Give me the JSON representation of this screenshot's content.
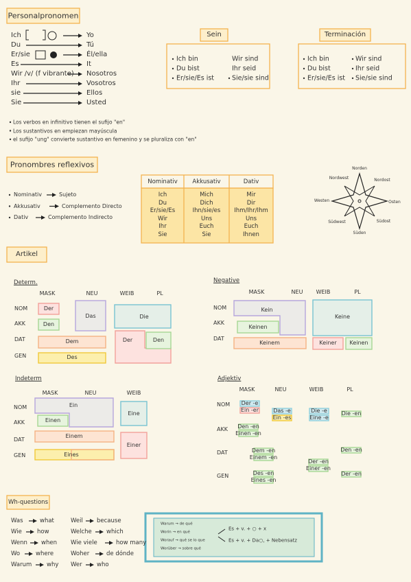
{
  "personal": {
    "title": "Personalpronomen",
    "rows": [
      [
        "Ich",
        "Yo"
      ],
      [
        "Du",
        "Tú"
      ],
      [
        "Er/sie",
        "Él/ella"
      ],
      [
        "Es",
        "It"
      ],
      [
        "Wir /v/ (f vibrante)",
        "Nosotros"
      ],
      [
        "Ihr",
        "Vosotros"
      ],
      [
        "sie",
        "Ellos"
      ],
      [
        "Sie",
        "Usted"
      ]
    ]
  },
  "sein": {
    "title": "Sein",
    "left": [
      "Ich bin",
      "Du bist",
      "Er/sie/Es ist"
    ],
    "right": [
      "Wir sind",
      "Ihr seid",
      "Sie/sie sind"
    ]
  },
  "terminacion": {
    "title": "Terminación",
    "left": [
      "Ich bin",
      "Du bist",
      "Er/sie/Es ist"
    ],
    "right": [
      "Wir sind",
      "Ihr seid",
      "Sie/sie sind"
    ]
  },
  "notes": [
    "Los verbos en infinitivo tienen el sufijo \"en\"",
    "Los sustantivos en empiezan mayúscula",
    "el sufijo \"ung\" convierte sustantivo en femenino y se pluraliza con \"en\""
  ],
  "reflexive": {
    "title": "Pronombres reflexivos",
    "bullets": [
      [
        "Nominativ",
        "Sujeto"
      ],
      [
        "Akkusativ",
        "Complemento Directo"
      ],
      [
        "Dativ",
        "Complemento Indirecto"
      ]
    ],
    "table": {
      "headers": [
        "Nominativ",
        "Akkusativ",
        "Dativ"
      ],
      "rows": [
        [
          "Ich",
          "Mich",
          "Mir"
        ],
        [
          "Du",
          "Dich",
          "Dir"
        ],
        [
          "Er/sie/Es",
          "Ihn/sie/es",
          "Ihm/Ihr/Ihm"
        ],
        [
          "Wir",
          "Uns",
          "Uns"
        ],
        [
          "Ihr",
          "Euch",
          "Euch"
        ],
        [
          "Sie",
          "Sie",
          "Ihnen"
        ]
      ]
    }
  },
  "compass": {
    "north": "Norden",
    "northwest": "Nordwest",
    "northeast": "Nordost",
    "west": "Westen",
    "east": "Osten",
    "southwest": "Südwest",
    "southeast": "Südost",
    "south": "Süden"
  },
  "artikel": {
    "title": "Artikel",
    "determ": {
      "title": "Determ.",
      "columns": [
        "MASK",
        "NEU",
        "WEIB",
        "PL"
      ],
      "rows": [
        "NOM",
        "AKK",
        "DAT",
        "GEN"
      ],
      "cells": [
        "Der",
        "Den",
        "Das",
        "Die",
        "Dem",
        "Des",
        "Der",
        "Den"
      ]
    },
    "negative": {
      "title": "Negative",
      "columns": [
        "MASK",
        "NEU",
        "WEIB",
        "PL"
      ],
      "rows": [
        "NOM",
        "AKK",
        "DAT"
      ],
      "cells": [
        "Kein",
        "Keinen",
        "Keine",
        "Keinem",
        "Keiner",
        "Keinen"
      ]
    },
    "indeterm": {
      "title": "Indeterm",
      "columns": [
        "MASK",
        "NEU",
        "WEIB"
      ],
      "rows": [
        "NOM",
        "AKK",
        "DAT",
        "GEN"
      ],
      "cells": [
        "Ein",
        "Einen",
        "Eine",
        "Einem",
        "Eines",
        "Einer"
      ]
    },
    "adjektiv": {
      "title": "Adjektiv",
      "columns": [
        "MASK",
        "NEU",
        "WEIB",
        "PL"
      ],
      "rows": [
        "NOM",
        "AKK",
        "DAT",
        "GEN"
      ],
      "cells": [
        "Der -e",
        "Ein -er",
        "Das -e",
        "Ein -es",
        "Die -e",
        "Eine -e",
        "Die -en",
        "Den -en",
        "Einen -en",
        "Dem -en",
        "Einem -en",
        "Der -en",
        "Einer -en",
        "Den -en",
        "Des -en",
        "Eines -en",
        "Der -en"
      ]
    }
  },
  "wh": {
    "title": "Wh-questions",
    "items": [
      [
        "Was",
        "what"
      ],
      [
        "Wie",
        "how"
      ],
      [
        "Wenn",
        "when"
      ],
      [
        "Wo",
        "where"
      ],
      [
        "Warum",
        "why"
      ],
      [
        "Weil",
        "because"
      ],
      [
        "Welche",
        "which"
      ],
      [
        "Wie viele",
        "how many"
      ],
      [
        "Woher",
        "de dónde"
      ],
      [
        "Wer",
        "who"
      ]
    ]
  },
  "box": {
    "left": [
      "Warum → de qué",
      "Worin → en qué",
      "Worauf → qué se lo que",
      "Worüber → sobre qué"
    ],
    "right": [
      "Es + v. + ○ + x",
      "Es + v. + Da○, + Nebensatz"
    ]
  }
}
